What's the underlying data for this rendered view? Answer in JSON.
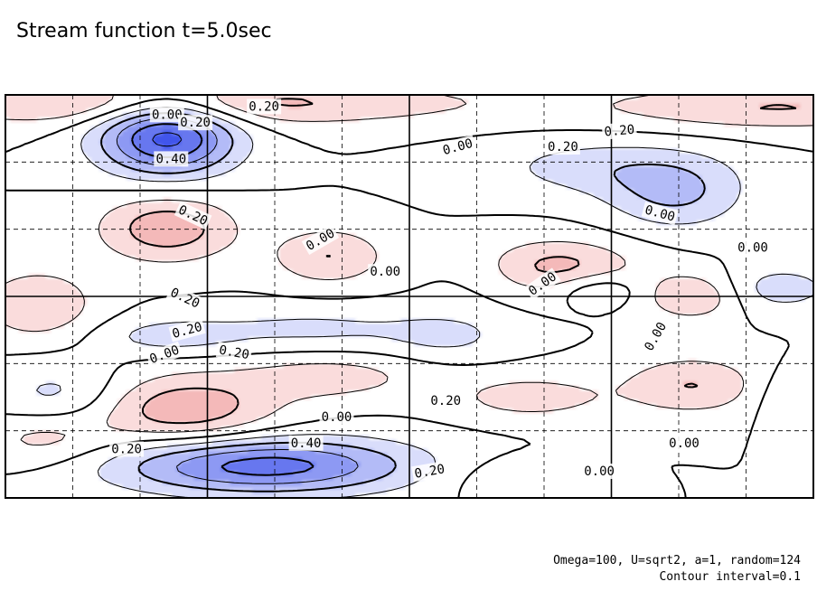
{
  "title": "Stream function t=5.0sec",
  "footer": {
    "params": "Omega=100, U=sqrt2, a=1, random=124",
    "contour": "Contour interval=0.1"
  },
  "chart_data": {
    "type": "heatmap",
    "title": "Stream function t=5.0sec",
    "contour_interval": 0.1,
    "grid": true,
    "colors": {
      "positive": "#f08080",
      "negative": "#5a6af0",
      "zero": "#ffffff"
    },
    "field_centers": [
      {
        "x": 0.2,
        "y": 0.9,
        "sx": 0.06,
        "sy": 0.07,
        "a": -0.55
      },
      {
        "x": 0.2,
        "y": 0.67,
        "sx": 0.06,
        "sy": 0.06,
        "a": 0.27
      },
      {
        "x": 0.05,
        "y": 0.15,
        "sx": 0.06,
        "sy": 0.05,
        "a": 0.15
      },
      {
        "x": 0.22,
        "y": 0.98,
        "sx": 0.25,
        "sy": 0.04,
        "a": 0.25
      },
      {
        "x": 0.4,
        "y": 0.6,
        "sx": 0.05,
        "sy": 0.05,
        "a": 0.2
      },
      {
        "x": 0.38,
        "y": 0.42,
        "sx": 0.12,
        "sy": 0.04,
        "a": -0.12
      },
      {
        "x": 0.68,
        "y": 0.57,
        "sx": 0.07,
        "sy": 0.05,
        "a": 0.25
      },
      {
        "x": 0.74,
        "y": 0.82,
        "sx": 0.1,
        "sy": 0.05,
        "a": -0.15
      },
      {
        "x": 0.83,
        "y": 0.75,
        "sx": 0.06,
        "sy": 0.06,
        "a": -0.2
      },
      {
        "x": 0.96,
        "y": 0.97,
        "sx": 0.15,
        "sy": 0.04,
        "a": 0.2
      },
      {
        "x": 0.85,
        "y": 0.5,
        "sx": 0.04,
        "sy": 0.04,
        "a": 0.2
      },
      {
        "x": 0.73,
        "y": 0.52,
        "sx": 0.04,
        "sy": 0.03,
        "a": -0.15
      },
      {
        "x": 0.96,
        "y": 0.52,
        "sx": 0.05,
        "sy": 0.04,
        "a": -0.15
      },
      {
        "x": 0.04,
        "y": 0.48,
        "sx": 0.05,
        "sy": 0.06,
        "a": 0.2
      },
      {
        "x": 0.07,
        "y": 0.25,
        "sx": 0.06,
        "sy": 0.06,
        "a": -0.15
      },
      {
        "x": 0.22,
        "y": 0.22,
        "sx": 0.08,
        "sy": 0.06,
        "a": 0.28
      },
      {
        "x": 0.4,
        "y": 0.3,
        "sx": 0.08,
        "sy": 0.04,
        "a": 0.15
      },
      {
        "x": 0.65,
        "y": 0.25,
        "sx": 0.07,
        "sy": 0.04,
        "a": 0.15
      },
      {
        "x": 0.85,
        "y": 0.28,
        "sx": 0.06,
        "sy": 0.05,
        "a": 0.2
      },
      {
        "x": 0.97,
        "y": 0.25,
        "sx": 0.03,
        "sy": 0.05,
        "a": -0.1
      },
      {
        "x": 0.32,
        "y": 0.08,
        "sx": 0.13,
        "sy": 0.05,
        "a": -0.45
      },
      {
        "x": 0.62,
        "y": 0.05,
        "sx": 0.06,
        "sy": 0.04,
        "a": 0.08
      },
      {
        "x": 0.2,
        "y": 0.4,
        "sx": 0.06,
        "sy": 0.03,
        "a": -0.12
      },
      {
        "x": 0.6,
        "y": 0.55,
        "sx": 0.05,
        "sy": 0.05,
        "a": -0.06
      },
      {
        "x": 0.55,
        "y": 0.4,
        "sx": 0.05,
        "sy": 0.04,
        "a": -0.1
      }
    ],
    "labels": [
      {
        "text": "0.00",
        "x": 0.2,
        "y": 0.95,
        "rot": 0
      },
      {
        "text": "0.20",
        "x": 0.235,
        "y": 0.93,
        "rot": 0
      },
      {
        "text": "0.20",
        "x": 0.32,
        "y": 0.97,
        "rot": 0
      },
      {
        "text": "0.40",
        "x": 0.205,
        "y": 0.84,
        "rot": 0
      },
      {
        "text": "0.20",
        "x": 0.232,
        "y": 0.7,
        "rot": 25
      },
      {
        "text": "0.00",
        "x": 0.39,
        "y": 0.64,
        "rot": -30
      },
      {
        "text": "0.00",
        "x": 0.47,
        "y": 0.56,
        "rot": 0
      },
      {
        "text": "0.20",
        "x": 0.222,
        "y": 0.495,
        "rot": 25
      },
      {
        "text": "0.20",
        "x": 0.225,
        "y": 0.415,
        "rot": -15
      },
      {
        "text": "0.00",
        "x": 0.197,
        "y": 0.355,
        "rot": -20
      },
      {
        "text": "0.20",
        "x": 0.283,
        "y": 0.36,
        "rot": 10
      },
      {
        "text": "0.00",
        "x": 0.56,
        "y": 0.87,
        "rot": -15
      },
      {
        "text": "0.20",
        "x": 0.69,
        "y": 0.87,
        "rot": 0
      },
      {
        "text": "0.20",
        "x": 0.76,
        "y": 0.91,
        "rot": -5
      },
      {
        "text": "0.00",
        "x": 0.81,
        "y": 0.705,
        "rot": 15
      },
      {
        "text": "0.00",
        "x": 0.925,
        "y": 0.62,
        "rot": 0
      },
      {
        "text": "0.00",
        "x": 0.665,
        "y": 0.53,
        "rot": -35
      },
      {
        "text": "0.00",
        "x": 0.805,
        "y": 0.4,
        "rot": -60
      },
      {
        "text": "0.20",
        "x": 0.545,
        "y": 0.24,
        "rot": 0
      },
      {
        "text": "0.00",
        "x": 0.41,
        "y": 0.2,
        "rot": 0
      },
      {
        "text": "0.00",
        "x": 0.84,
        "y": 0.135,
        "rot": 0
      },
      {
        "text": "0.20",
        "x": 0.15,
        "y": 0.12,
        "rot": 0
      },
      {
        "text": "0.40",
        "x": 0.372,
        "y": 0.135,
        "rot": 0
      },
      {
        "text": "0.20",
        "x": 0.525,
        "y": 0.065,
        "rot": -10
      },
      {
        "text": "0.00",
        "x": 0.735,
        "y": 0.065,
        "rot": 0
      }
    ]
  }
}
